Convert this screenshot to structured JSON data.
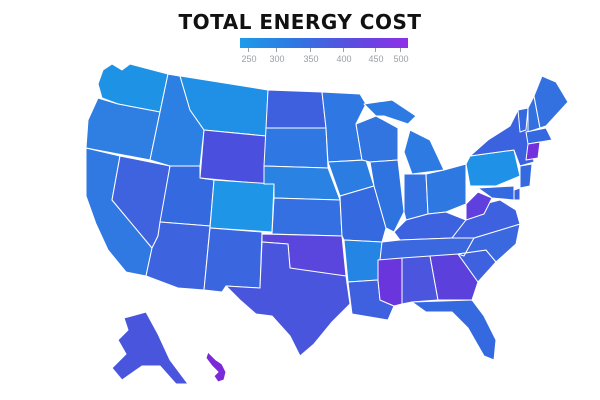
{
  "title": "TOTAL ENERGY COST",
  "legend": {
    "labels": [
      "250",
      "300",
      "350",
      "400",
      "450",
      "500"
    ],
    "color_low": "#1e9be8",
    "color_high": "#8e2fe6"
  },
  "colors": {
    "state_border": "#ffffff",
    "background": "#ffffff"
  },
  "map": {
    "states": [
      {
        "id": "WA",
        "color": "#1e93e6"
      },
      {
        "id": "OR",
        "color": "#2f7fe2"
      },
      {
        "id": "CA",
        "color": "#3179e2"
      },
      {
        "id": "NV",
        "color": "#3f62df"
      },
      {
        "id": "ID",
        "color": "#2d80e3"
      },
      {
        "id": "MT",
        "color": "#1f90e6"
      },
      {
        "id": "WY",
        "color": "#4b4fde"
      },
      {
        "id": "UT",
        "color": "#3569e0"
      },
      {
        "id": "AZ",
        "color": "#3d63df"
      },
      {
        "id": "CO",
        "color": "#1f95e8"
      },
      {
        "id": "NM",
        "color": "#3a66df"
      },
      {
        "id": "ND",
        "color": "#3e60df"
      },
      {
        "id": "SD",
        "color": "#2f77e2"
      },
      {
        "id": "NE",
        "color": "#2a82e3"
      },
      {
        "id": "KS",
        "color": "#3470e1"
      },
      {
        "id": "OK",
        "color": "#5a45dd"
      },
      {
        "id": "TX",
        "color": "#4a55dd"
      },
      {
        "id": "MN",
        "color": "#2f77e2"
      },
      {
        "id": "IA",
        "color": "#2c7de2"
      },
      {
        "id": "MO",
        "color": "#3469e0"
      },
      {
        "id": "AR",
        "color": "#2585e4"
      },
      {
        "id": "LA",
        "color": "#3f60df"
      },
      {
        "id": "WI",
        "color": "#3275e1"
      },
      {
        "id": "IL",
        "color": "#2f73e1"
      },
      {
        "id": "MI",
        "color": "#2d7be2"
      },
      {
        "id": "IN",
        "color": "#3471e1"
      },
      {
        "id": "OH",
        "color": "#2e78e2"
      },
      {
        "id": "KY",
        "color": "#3d62df"
      },
      {
        "id": "TN",
        "color": "#3b67df"
      },
      {
        "id": "MS",
        "color": "#6a35dc"
      },
      {
        "id": "AL",
        "color": "#4c55de"
      },
      {
        "id": "GA",
        "color": "#5c40dc"
      },
      {
        "id": "FL",
        "color": "#3469e0"
      },
      {
        "id": "SC",
        "color": "#3e62df"
      },
      {
        "id": "NC",
        "color": "#3a68df"
      },
      {
        "id": "VA",
        "color": "#3e62df"
      },
      {
        "id": "WV",
        "color": "#5f3fdd"
      },
      {
        "id": "PA",
        "color": "#1f92e7"
      },
      {
        "id": "NY",
        "color": "#3c63df"
      },
      {
        "id": "VT",
        "color": "#3469e0"
      },
      {
        "id": "NH",
        "color": "#3371e1"
      },
      {
        "id": "ME",
        "color": "#3371e1"
      },
      {
        "id": "MA",
        "color": "#3469e0"
      },
      {
        "id": "CT",
        "color": "#7231dc"
      },
      {
        "id": "NJ",
        "color": "#3469e0"
      },
      {
        "id": "DE",
        "color": "#3e62df"
      },
      {
        "id": "MD",
        "color": "#3469e0"
      },
      {
        "id": "AK",
        "color": "#4a55dd"
      },
      {
        "id": "HI",
        "color": "#7a2ad9"
      }
    ]
  }
}
